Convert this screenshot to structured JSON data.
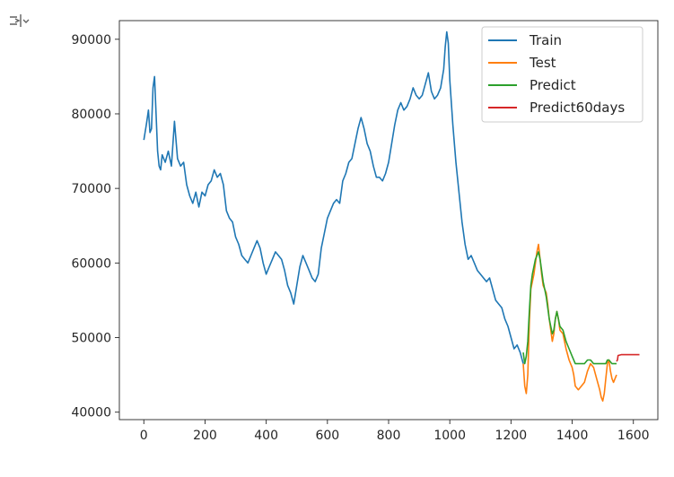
{
  "cell": {
    "output_icon": "output-toggle-icon"
  },
  "chart_data": {
    "type": "line",
    "title": "",
    "xlabel": "",
    "ylabel": "",
    "xlim": [
      -80,
      1680
    ],
    "ylim": [
      39000,
      92500
    ],
    "x_ticks": [
      0,
      200,
      400,
      600,
      800,
      1000,
      1200,
      1400,
      1600
    ],
    "x_tick_labels": [
      "0",
      "200",
      "400",
      "600",
      "800",
      "1000",
      "1200",
      "1400",
      "1600"
    ],
    "y_ticks": [
      40000,
      50000,
      60000,
      70000,
      80000,
      90000
    ],
    "y_tick_labels": [
      "40000",
      "50000",
      "60000",
      "70000",
      "80000",
      "90000"
    ],
    "grid": false,
    "legend_position": "top-right",
    "series": [
      {
        "name": "Train",
        "color": "#1f77b4",
        "points": [
          [
            0,
            76500
          ],
          [
            8,
            78500
          ],
          [
            15,
            80500
          ],
          [
            20,
            77500
          ],
          [
            25,
            78000
          ],
          [
            30,
            83500
          ],
          [
            35,
            85000
          ],
          [
            40,
            80000
          ],
          [
            45,
            75000
          ],
          [
            50,
            73000
          ],
          [
            55,
            72500
          ],
          [
            60,
            74500
          ],
          [
            70,
            73500
          ],
          [
            80,
            75000
          ],
          [
            90,
            73000
          ],
          [
            100,
            79000
          ],
          [
            110,
            74000
          ],
          [
            120,
            73000
          ],
          [
            130,
            73500
          ],
          [
            140,
            70500
          ],
          [
            150,
            69000
          ],
          [
            160,
            68000
          ],
          [
            170,
            69500
          ],
          [
            180,
            67500
          ],
          [
            190,
            69500
          ],
          [
            200,
            69000
          ],
          [
            210,
            70500
          ],
          [
            220,
            71000
          ],
          [
            230,
            72500
          ],
          [
            240,
            71500
          ],
          [
            250,
            72000
          ],
          [
            260,
            70500
          ],
          [
            270,
            67000
          ],
          [
            280,
            66000
          ],
          [
            290,
            65500
          ],
          [
            300,
            63500
          ],
          [
            310,
            62500
          ],
          [
            320,
            61000
          ],
          [
            330,
            60500
          ],
          [
            340,
            60000
          ],
          [
            350,
            61000
          ],
          [
            360,
            62000
          ],
          [
            370,
            63000
          ],
          [
            380,
            62000
          ],
          [
            390,
            60000
          ],
          [
            400,
            58500
          ],
          [
            410,
            59500
          ],
          [
            420,
            60500
          ],
          [
            430,
            61500
          ],
          [
            440,
            61000
          ],
          [
            450,
            60500
          ],
          [
            460,
            59000
          ],
          [
            470,
            57000
          ],
          [
            480,
            56000
          ],
          [
            490,
            54500
          ],
          [
            500,
            57000
          ],
          [
            510,
            59500
          ],
          [
            520,
            61000
          ],
          [
            530,
            60000
          ],
          [
            540,
            59000
          ],
          [
            550,
            58000
          ],
          [
            560,
            57500
          ],
          [
            570,
            58500
          ],
          [
            580,
            62000
          ],
          [
            590,
            64000
          ],
          [
            600,
            66000
          ],
          [
            610,
            67000
          ],
          [
            620,
            68000
          ],
          [
            630,
            68500
          ],
          [
            640,
            68000
          ],
          [
            650,
            71000
          ],
          [
            660,
            72000
          ],
          [
            670,
            73500
          ],
          [
            680,
            74000
          ],
          [
            690,
            76000
          ],
          [
            700,
            78000
          ],
          [
            710,
            79500
          ],
          [
            720,
            78000
          ],
          [
            730,
            76000
          ],
          [
            740,
            75000
          ],
          [
            750,
            73000
          ],
          [
            760,
            71500
          ],
          [
            770,
            71500
          ],
          [
            780,
            71000
          ],
          [
            790,
            72000
          ],
          [
            800,
            73500
          ],
          [
            810,
            76000
          ],
          [
            820,
            78500
          ],
          [
            830,
            80500
          ],
          [
            840,
            81500
          ],
          [
            850,
            80500
          ],
          [
            860,
            81000
          ],
          [
            870,
            82000
          ],
          [
            880,
            83500
          ],
          [
            890,
            82500
          ],
          [
            900,
            82000
          ],
          [
            910,
            82500
          ],
          [
            920,
            84000
          ],
          [
            930,
            85500
          ],
          [
            940,
            83000
          ],
          [
            950,
            82000
          ],
          [
            960,
            82500
          ],
          [
            970,
            83500
          ],
          [
            980,
            86000
          ],
          [
            985,
            89000
          ],
          [
            990,
            91000
          ],
          [
            995,
            89500
          ],
          [
            1000,
            84500
          ],
          [
            1010,
            78500
          ],
          [
            1020,
            73500
          ],
          [
            1030,
            69500
          ],
          [
            1040,
            65500
          ],
          [
            1050,
            62500
          ],
          [
            1060,
            60500
          ],
          [
            1070,
            61000
          ],
          [
            1080,
            60000
          ],
          [
            1090,
            59000
          ],
          [
            1100,
            58500
          ],
          [
            1110,
            58000
          ],
          [
            1120,
            57500
          ],
          [
            1130,
            58000
          ],
          [
            1140,
            56500
          ],
          [
            1150,
            55000
          ],
          [
            1160,
            54500
          ],
          [
            1170,
            54000
          ],
          [
            1180,
            52500
          ],
          [
            1190,
            51500
          ],
          [
            1200,
            50000
          ],
          [
            1210,
            48500
          ],
          [
            1220,
            49000
          ],
          [
            1230,
            48000
          ],
          [
            1240,
            46500
          ]
        ]
      },
      {
        "name": "Test",
        "color": "#ff7f0e",
        "points": [
          [
            1240,
            46500
          ],
          [
            1245,
            43500
          ],
          [
            1250,
            42500
          ],
          [
            1255,
            45000
          ],
          [
            1260,
            52000
          ],
          [
            1265,
            56500
          ],
          [
            1270,
            57500
          ],
          [
            1275,
            58500
          ],
          [
            1280,
            60000
          ],
          [
            1285,
            61500
          ],
          [
            1290,
            62500
          ],
          [
            1295,
            60500
          ],
          [
            1300,
            58500
          ],
          [
            1305,
            57000
          ],
          [
            1310,
            56500
          ],
          [
            1315,
            56000
          ],
          [
            1320,
            54500
          ],
          [
            1325,
            52500
          ],
          [
            1330,
            51000
          ],
          [
            1335,
            49500
          ],
          [
            1340,
            50500
          ],
          [
            1345,
            52500
          ],
          [
            1350,
            53500
          ],
          [
            1355,
            52500
          ],
          [
            1360,
            51000
          ],
          [
            1370,
            50500
          ],
          [
            1380,
            48500
          ],
          [
            1390,
            47000
          ],
          [
            1400,
            46000
          ],
          [
            1405,
            45000
          ],
          [
            1410,
            43500
          ],
          [
            1420,
            43000
          ],
          [
            1430,
            43500
          ],
          [
            1440,
            44000
          ],
          [
            1450,
            45500
          ],
          [
            1460,
            46500
          ],
          [
            1470,
            46000
          ],
          [
            1480,
            44500
          ],
          [
            1490,
            43000
          ],
          [
            1495,
            42000
          ],
          [
            1500,
            41500
          ],
          [
            1505,
            42500
          ],
          [
            1510,
            44500
          ],
          [
            1515,
            46500
          ],
          [
            1520,
            47000
          ],
          [
            1525,
            45500
          ],
          [
            1530,
            44500
          ],
          [
            1535,
            44000
          ],
          [
            1540,
            44500
          ],
          [
            1545,
            45000
          ]
        ]
      },
      {
        "name": "Predict",
        "color": "#2ca02c",
        "points": [
          [
            1240,
            48000
          ],
          [
            1245,
            46500
          ],
          [
            1250,
            47500
          ],
          [
            1255,
            49500
          ],
          [
            1260,
            53500
          ],
          [
            1265,
            57000
          ],
          [
            1270,
            58500
          ],
          [
            1275,
            59500
          ],
          [
            1280,
            60500
          ],
          [
            1285,
            61000
          ],
          [
            1290,
            61500
          ],
          [
            1295,
            60500
          ],
          [
            1300,
            59000
          ],
          [
            1305,
            57500
          ],
          [
            1310,
            56500
          ],
          [
            1315,
            55500
          ],
          [
            1320,
            54000
          ],
          [
            1325,
            52500
          ],
          [
            1330,
            51500
          ],
          [
            1335,
            50500
          ],
          [
            1340,
            51000
          ],
          [
            1345,
            52500
          ],
          [
            1350,
            53500
          ],
          [
            1355,
            52500
          ],
          [
            1360,
            51500
          ],
          [
            1370,
            51000
          ],
          [
            1380,
            49500
          ],
          [
            1390,
            48500
          ],
          [
            1400,
            47500
          ],
          [
            1410,
            46500
          ],
          [
            1420,
            46500
          ],
          [
            1430,
            46500
          ],
          [
            1440,
            46500
          ],
          [
            1450,
            47000
          ],
          [
            1460,
            47000
          ],
          [
            1470,
            46500
          ],
          [
            1480,
            46500
          ],
          [
            1490,
            46500
          ],
          [
            1500,
            46500
          ],
          [
            1510,
            46500
          ],
          [
            1515,
            47000
          ],
          [
            1520,
            47000
          ],
          [
            1530,
            46500
          ],
          [
            1540,
            46500
          ],
          [
            1545,
            46500
          ]
        ]
      },
      {
        "name": "Predict60days",
        "color": "#d62728",
        "points": [
          [
            1545,
            46800
          ],
          [
            1548,
            47000
          ],
          [
            1550,
            47600
          ],
          [
            1560,
            47700
          ],
          [
            1580,
            47700
          ],
          [
            1600,
            47700
          ],
          [
            1620,
            47700
          ]
        ]
      }
    ]
  }
}
